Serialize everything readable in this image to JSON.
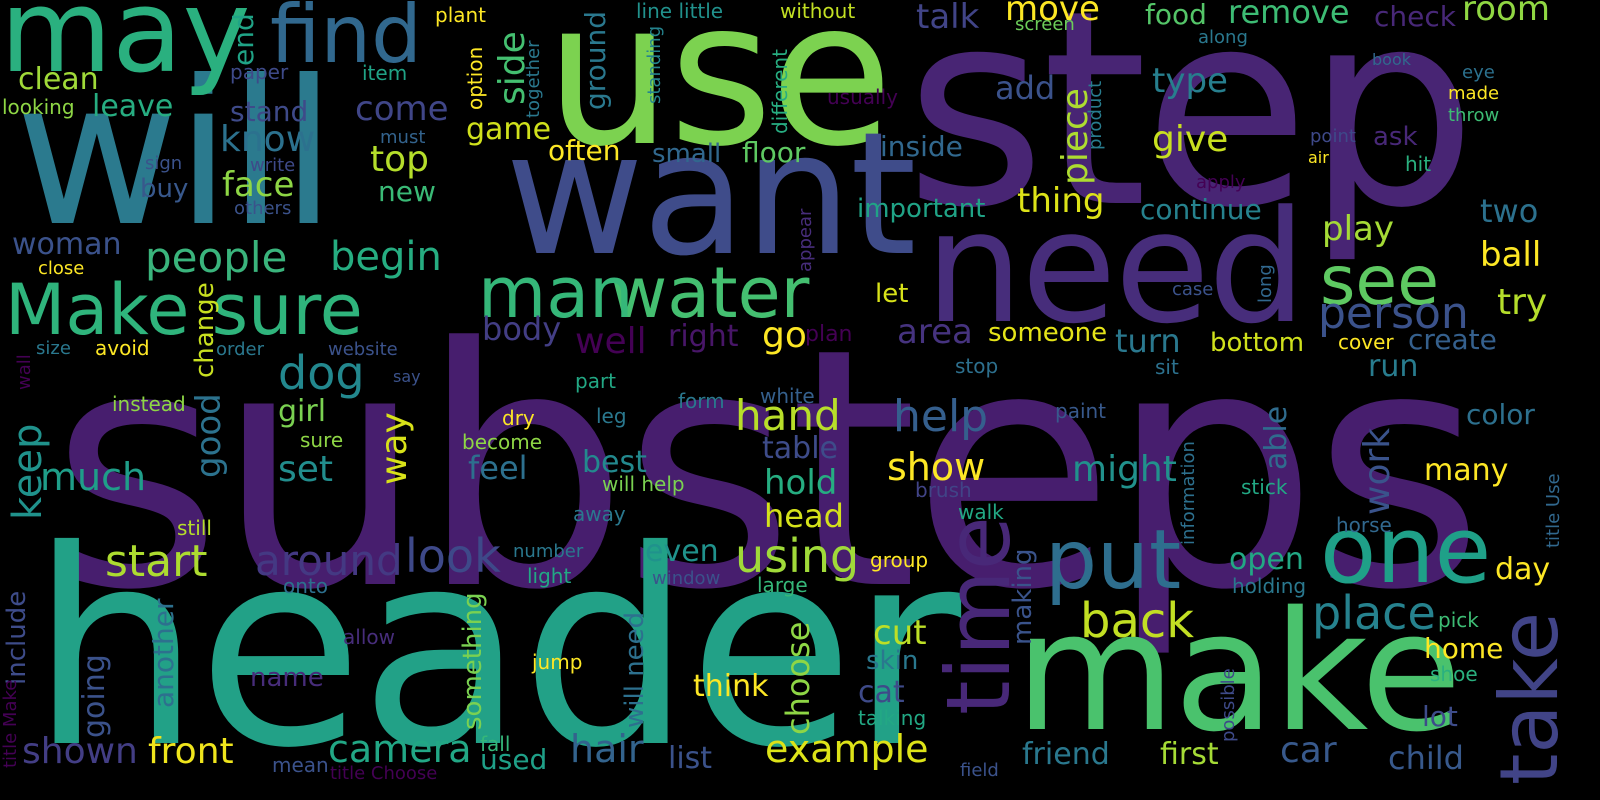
{
  "cloud": {
    "background": "#000000",
    "words": [
      {
        "text": "substeps",
        "color": "#471e6e"
      },
      {
        "text": "header",
        "color": "#22a187"
      },
      {
        "text": "step",
        "color": "#482574"
      },
      {
        "text": "will",
        "color": "#2b7a8e"
      },
      {
        "text": "use",
        "color": "#7cd250"
      },
      {
        "text": "want",
        "color": "#3f4c8a"
      },
      {
        "text": "need",
        "color": "#472d7b"
      },
      {
        "text": "make",
        "color": "#4ac26d"
      },
      {
        "text": "may",
        "color": "#2ab07f"
      },
      {
        "text": "find",
        "color": "#31688e"
      },
      {
        "text": "one",
        "color": "#1fa088"
      },
      {
        "text": "put",
        "color": "#2e6e8e"
      },
      {
        "text": "time",
        "color": "#482878"
      },
      {
        "text": "take",
        "color": "#414487"
      },
      {
        "text": "water",
        "color": "#44bf70"
      },
      {
        "text": "man",
        "color": "#35b779"
      },
      {
        "text": "Make sure",
        "color": "#2fb47c"
      },
      {
        "text": "see",
        "color": "#5ec962"
      },
      {
        "text": "person",
        "color": "#3b528b"
      },
      {
        "text": "people",
        "color": "#3ab47c"
      },
      {
        "text": "begin",
        "color": "#26ad81"
      },
      {
        "text": "dog",
        "color": "#23888e"
      },
      {
        "text": "hand",
        "color": "#b8de29"
      },
      {
        "text": "help",
        "color": "#355f8d"
      },
      {
        "text": "show",
        "color": "#fde725"
      },
      {
        "text": "keep",
        "color": "#20928c"
      },
      {
        "text": "much",
        "color": "#1f9e89"
      },
      {
        "text": "start",
        "color": "#addc30"
      },
      {
        "text": "around",
        "color": "#443983"
      },
      {
        "text": "look",
        "color": "#3e4989"
      },
      {
        "text": "using",
        "color": "#a0da39"
      },
      {
        "text": "back",
        "color": "#c2df23"
      },
      {
        "text": "place",
        "color": "#26828e"
      },
      {
        "text": "camera",
        "color": "#22a785"
      },
      {
        "text": "hair",
        "color": "#33638d"
      },
      {
        "text": "example",
        "color": "#dde318"
      },
      {
        "text": "front",
        "color": "#efe51c"
      },
      {
        "text": "shown",
        "color": "#433e85"
      },
      {
        "text": "friend",
        "color": "#2a788e"
      },
      {
        "text": "first",
        "color": "#a5db36"
      },
      {
        "text": "car",
        "color": "#38598c"
      },
      {
        "text": "child",
        "color": "#38598c"
      },
      {
        "text": "day",
        "color": "#fde725"
      },
      {
        "text": "home",
        "color": "#fde725"
      },
      {
        "text": "clean",
        "color": "#a0da39"
      },
      {
        "text": "leave",
        "color": "#27ad81"
      },
      {
        "text": "end",
        "color": "#20a386"
      },
      {
        "text": "stand",
        "color": "#3e4a89"
      },
      {
        "text": "know",
        "color": "#2c718e"
      },
      {
        "text": "come",
        "color": "#404688"
      },
      {
        "text": "top",
        "color": "#b5de2b"
      },
      {
        "text": "face",
        "color": "#8ed645"
      },
      {
        "text": "new",
        "color": "#3aba76"
      },
      {
        "text": "buy",
        "color": "#38588c"
      },
      {
        "text": "game",
        "color": "#d0e11c"
      },
      {
        "text": "often",
        "color": "#fde725"
      },
      {
        "text": "small",
        "color": "#31688e"
      },
      {
        "text": "floor",
        "color": "#5ec962"
      },
      {
        "text": "side",
        "color": "#44bf70"
      },
      {
        "text": "ground",
        "color": "#2a788e"
      },
      {
        "text": "talk",
        "color": "#414487"
      },
      {
        "text": "move",
        "color": "#fde725"
      },
      {
        "text": "food",
        "color": "#54c568"
      },
      {
        "text": "remove",
        "color": "#3dbc74"
      },
      {
        "text": "check",
        "color": "#482878"
      },
      {
        "text": "room",
        "color": "#90d743"
      },
      {
        "text": "add",
        "color": "#3b528b"
      },
      {
        "text": "type",
        "color": "#277f8e"
      },
      {
        "text": "give",
        "color": "#c8e020"
      },
      {
        "text": "thing",
        "color": "#dde318"
      },
      {
        "text": "piece",
        "color": "#addc30"
      },
      {
        "text": "important",
        "color": "#20a386"
      },
      {
        "text": "inside",
        "color": "#31688e"
      },
      {
        "text": "continue",
        "color": "#26828e"
      },
      {
        "text": "two",
        "color": "#2c718e"
      },
      {
        "text": "play",
        "color": "#a5db36"
      },
      {
        "text": "ball",
        "color": "#fde725"
      },
      {
        "text": "try",
        "color": "#b5de2b"
      },
      {
        "text": "let",
        "color": "#d8e219"
      },
      {
        "text": "area",
        "color": "#46337f"
      },
      {
        "text": "someone",
        "color": "#e5e419"
      },
      {
        "text": "turn",
        "color": "#2a788e"
      },
      {
        "text": "bottom",
        "color": "#d0e11c"
      },
      {
        "text": "create",
        "color": "#35608d"
      },
      {
        "text": "run",
        "color": "#287c8e"
      },
      {
        "text": "color",
        "color": "#2d708e"
      },
      {
        "text": "body",
        "color": "#433e85"
      },
      {
        "text": "well",
        "color": "#440154"
      },
      {
        "text": "right",
        "color": "#481668"
      },
      {
        "text": "go",
        "color": "#fde725"
      },
      {
        "text": "plan",
        "color": "#440154"
      },
      {
        "text": "change",
        "color": "#c8e020"
      },
      {
        "text": "woman",
        "color": "#3b528b"
      },
      {
        "text": "girl",
        "color": "#7ad151"
      },
      {
        "text": "set",
        "color": "#228d8d"
      },
      {
        "text": "way",
        "color": "#d8e219"
      },
      {
        "text": "good",
        "color": "#2c728e"
      },
      {
        "text": "feel",
        "color": "#2d708e"
      },
      {
        "text": "best",
        "color": "#23898e"
      },
      {
        "text": "table",
        "color": "#3e4c8a"
      },
      {
        "text": "hold",
        "color": "#26ad81"
      },
      {
        "text": "head",
        "color": "#d5e21a"
      },
      {
        "text": "might",
        "color": "#21918c"
      },
      {
        "text": "work",
        "color": "#3a538b"
      },
      {
        "text": "many",
        "color": "#fde725"
      },
      {
        "text": "able",
        "color": "#2f6c8e"
      },
      {
        "text": "even",
        "color": "#20928c"
      },
      {
        "text": "cut",
        "color": "#bddf26"
      },
      {
        "text": "skin",
        "color": "#2a788e"
      },
      {
        "text": "cat",
        "color": "#3e4a89"
      },
      {
        "text": "think",
        "color": "#fde725"
      },
      {
        "text": "choose",
        "color": "#8ed645"
      },
      {
        "text": "open",
        "color": "#22a884"
      },
      {
        "text": "lot",
        "color": "#3e4c8a"
      },
      {
        "text": "going",
        "color": "#3b528b"
      },
      {
        "text": "another",
        "color": "#2d708e"
      },
      {
        "text": "include",
        "color": "#3e4c8a"
      },
      {
        "text": "used",
        "color": "#1fa088"
      },
      {
        "text": "list",
        "color": "#3b528b"
      },
      {
        "text": "something",
        "color": "#7ad151"
      },
      {
        "text": "making",
        "color": "#3a538b"
      },
      {
        "text": "will need",
        "color": "#2d708e"
      },
      {
        "text": "name",
        "color": "#472c7a"
      },
      {
        "text": "plant",
        "color": "#fde725"
      },
      {
        "text": "line little",
        "color": "#21918c"
      },
      {
        "text": "without",
        "color": "#c2df23"
      },
      {
        "text": "paper",
        "color": "#3e4a89"
      },
      {
        "text": "item",
        "color": "#20a386"
      },
      {
        "text": "looking",
        "color": "#8ed645"
      },
      {
        "text": "option",
        "color": "#fde725"
      },
      {
        "text": "together",
        "color": "#2a788e"
      },
      {
        "text": "standing",
        "color": "#25848e"
      },
      {
        "text": "different",
        "color": "#27ad81"
      },
      {
        "text": "usually",
        "color": "#440154"
      },
      {
        "text": "product",
        "color": "#287c8e"
      },
      {
        "text": "screen",
        "color": "#6ccd5a"
      },
      {
        "text": "along",
        "color": "#2a788e"
      },
      {
        "text": "book",
        "color": "#31688e"
      },
      {
        "text": "eye",
        "color": "#2c718e"
      },
      {
        "text": "made",
        "color": "#fde725"
      },
      {
        "text": "throw",
        "color": "#3dbc74"
      },
      {
        "text": "point",
        "color": "#3e4989"
      },
      {
        "text": "ask",
        "color": "#482878"
      },
      {
        "text": "air",
        "color": "#fde725"
      },
      {
        "text": "hit",
        "color": "#2ab07f"
      },
      {
        "text": "apply",
        "color": "#440154"
      },
      {
        "text": "must",
        "color": "#33638d"
      },
      {
        "text": "write",
        "color": "#3e4a89"
      },
      {
        "text": "sign",
        "color": "#3b528b"
      },
      {
        "text": "others",
        "color": "#3b528b"
      },
      {
        "text": "close",
        "color": "#fde725"
      },
      {
        "text": "appear",
        "color": "#472d7b"
      },
      {
        "text": "long",
        "color": "#31688e"
      },
      {
        "text": "case",
        "color": "#3b528b"
      },
      {
        "text": "size",
        "color": "#2a788e"
      },
      {
        "text": "avoid",
        "color": "#fde725"
      },
      {
        "text": "order",
        "color": "#2a788e"
      },
      {
        "text": "website",
        "color": "#3b528b"
      },
      {
        "text": "wall",
        "color": "#440154"
      },
      {
        "text": "say",
        "color": "#3b528b"
      },
      {
        "text": "instead",
        "color": "#8ed645"
      },
      {
        "text": "part",
        "color": "#22a884"
      },
      {
        "text": "leg",
        "color": "#2a788e"
      },
      {
        "text": "dry",
        "color": "#fde725"
      },
      {
        "text": "become",
        "color": "#8ed645"
      },
      {
        "text": "sure",
        "color": "#8ed645"
      },
      {
        "text": "stop",
        "color": "#2d708e"
      },
      {
        "text": "sit",
        "color": "#2c718e"
      },
      {
        "text": "cover",
        "color": "#fde725"
      },
      {
        "text": "white",
        "color": "#35608d"
      },
      {
        "text": "form",
        "color": "#2a788e"
      },
      {
        "text": "paint",
        "color": "#38598c"
      },
      {
        "text": "information",
        "color": "#2d708e"
      },
      {
        "text": "title Use",
        "color": "#31688e"
      },
      {
        "text": "brush",
        "color": "#414487"
      },
      {
        "text": "will help",
        "color": "#7ad151"
      },
      {
        "text": "stick",
        "color": "#22a884"
      },
      {
        "text": "walk",
        "color": "#22a884"
      },
      {
        "text": "away",
        "color": "#2a788e"
      },
      {
        "text": "still",
        "color": "#b5de2b"
      },
      {
        "text": "horse",
        "color": "#31688e"
      },
      {
        "text": "number",
        "color": "#2a788e"
      },
      {
        "text": "group",
        "color": "#fde725"
      },
      {
        "text": "light",
        "color": "#22a884"
      },
      {
        "text": "window",
        "color": "#3b528b"
      },
      {
        "text": "large",
        "color": "#35b779"
      },
      {
        "text": "holding",
        "color": "#2a788e"
      },
      {
        "text": "onto",
        "color": "#2d708e"
      },
      {
        "text": "pick",
        "color": "#3dbc74"
      },
      {
        "text": "allow",
        "color": "#472d7b"
      },
      {
        "text": "shoe",
        "color": "#2ab07f"
      },
      {
        "text": "jump",
        "color": "#fde725"
      },
      {
        "text": "possible",
        "color": "#3e4a89"
      },
      {
        "text": "title Make",
        "color": "#440154"
      },
      {
        "text": "talking",
        "color": "#22a884"
      },
      {
        "text": "mean",
        "color": "#3b528b"
      },
      {
        "text": "fall",
        "color": "#35b779"
      },
      {
        "text": "title Choose",
        "color": "#440154"
      },
      {
        "text": "field",
        "color": "#3b528b"
      }
    ]
  }
}
